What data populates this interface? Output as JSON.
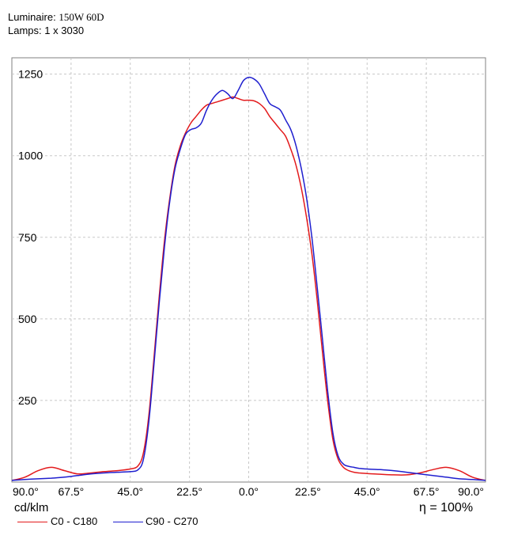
{
  "header": {
    "luminaire_label": "Luminaire:",
    "luminaire_value": "150W 60D",
    "lamps_label": "Lamps:",
    "lamps_value": "1 x 3030"
  },
  "unit_label": "cd/klm",
  "efficiency_label": "η = 100%",
  "colors": {
    "c0": "#e31a1c",
    "c90": "#1f1fcf",
    "grid": "#c8c8c8"
  },
  "chart_data": {
    "type": "line",
    "title": "",
    "xlabel": "",
    "ylabel": "cd/klm",
    "xlim": [
      -90,
      90
    ],
    "ylim": [
      0,
      1300
    ],
    "y_ticks": [
      250,
      500,
      750,
      1000,
      1250
    ],
    "x_ticks": [
      -90,
      -67.5,
      -45,
      -22.5,
      0,
      22.5,
      45,
      67.5,
      90
    ],
    "x_tick_labels": [
      "90.0°",
      "67.5°",
      "45.0°",
      "22.5°",
      "0.0°",
      "22.5°",
      "45.0°",
      "67.5°",
      "90.0°"
    ],
    "grid": true,
    "legend_position": "bottom-left",
    "series": [
      {
        "name": "C0 - C180",
        "color": "#e31a1c",
        "x": [
          -90,
          -85,
          -80,
          -75,
          -70,
          -65,
          -60,
          -55,
          -50,
          -45,
          -42,
          -40,
          -38,
          -36,
          -34,
          -32,
          -30,
          -28,
          -26,
          -24,
          -22,
          -20,
          -18,
          -16,
          -14,
          -12,
          -10,
          -8,
          -6,
          -4,
          -2,
          0,
          2,
          4,
          6,
          8,
          10,
          12,
          14,
          16,
          18,
          20,
          22,
          24,
          26,
          28,
          30,
          32,
          34,
          36,
          38,
          40,
          42,
          45,
          50,
          55,
          60,
          65,
          70,
          75,
          80,
          85,
          90
        ],
        "y": [
          5,
          15,
          35,
          45,
          35,
          25,
          28,
          32,
          35,
          40,
          50,
          90,
          200,
          380,
          570,
          740,
          870,
          970,
          1030,
          1070,
          1100,
          1120,
          1140,
          1155,
          1160,
          1165,
          1170,
          1175,
          1180,
          1175,
          1170,
          1170,
          1168,
          1160,
          1145,
          1120,
          1100,
          1080,
          1060,
          1020,
          970,
          900,
          810,
          700,
          560,
          400,
          250,
          130,
          70,
          45,
          35,
          30,
          28,
          26,
          24,
          22,
          22,
          28,
          38,
          45,
          35,
          15,
          5
        ]
      },
      {
        "name": "C90 - C270",
        "color": "#1f1fcf",
        "x": [
          -90,
          -85,
          -80,
          -75,
          -70,
          -65,
          -60,
          -55,
          -50,
          -45,
          -42,
          -40,
          -38,
          -36,
          -34,
          -32,
          -30,
          -28,
          -26,
          -24,
          -22,
          -20,
          -18,
          -16,
          -14,
          -12,
          -10,
          -8,
          -6,
          -4,
          -2,
          0,
          2,
          4,
          6,
          8,
          10,
          12,
          14,
          16,
          18,
          20,
          22,
          24,
          26,
          28,
          30,
          32,
          34,
          36,
          38,
          40,
          42,
          45,
          50,
          55,
          60,
          65,
          70,
          75,
          80,
          85,
          90
        ],
        "y": [
          5,
          8,
          10,
          12,
          15,
          20,
          25,
          28,
          30,
          32,
          38,
          70,
          180,
          360,
          550,
          720,
          860,
          960,
          1020,
          1065,
          1080,
          1085,
          1100,
          1140,
          1170,
          1190,
          1200,
          1190,
          1175,
          1200,
          1230,
          1240,
          1235,
          1220,
          1190,
          1160,
          1150,
          1140,
          1110,
          1080,
          1030,
          960,
          870,
          750,
          600,
          440,
          280,
          150,
          80,
          55,
          48,
          45,
          42,
          40,
          38,
          35,
          30,
          25,
          20,
          15,
          10,
          8,
          5
        ]
      }
    ]
  }
}
